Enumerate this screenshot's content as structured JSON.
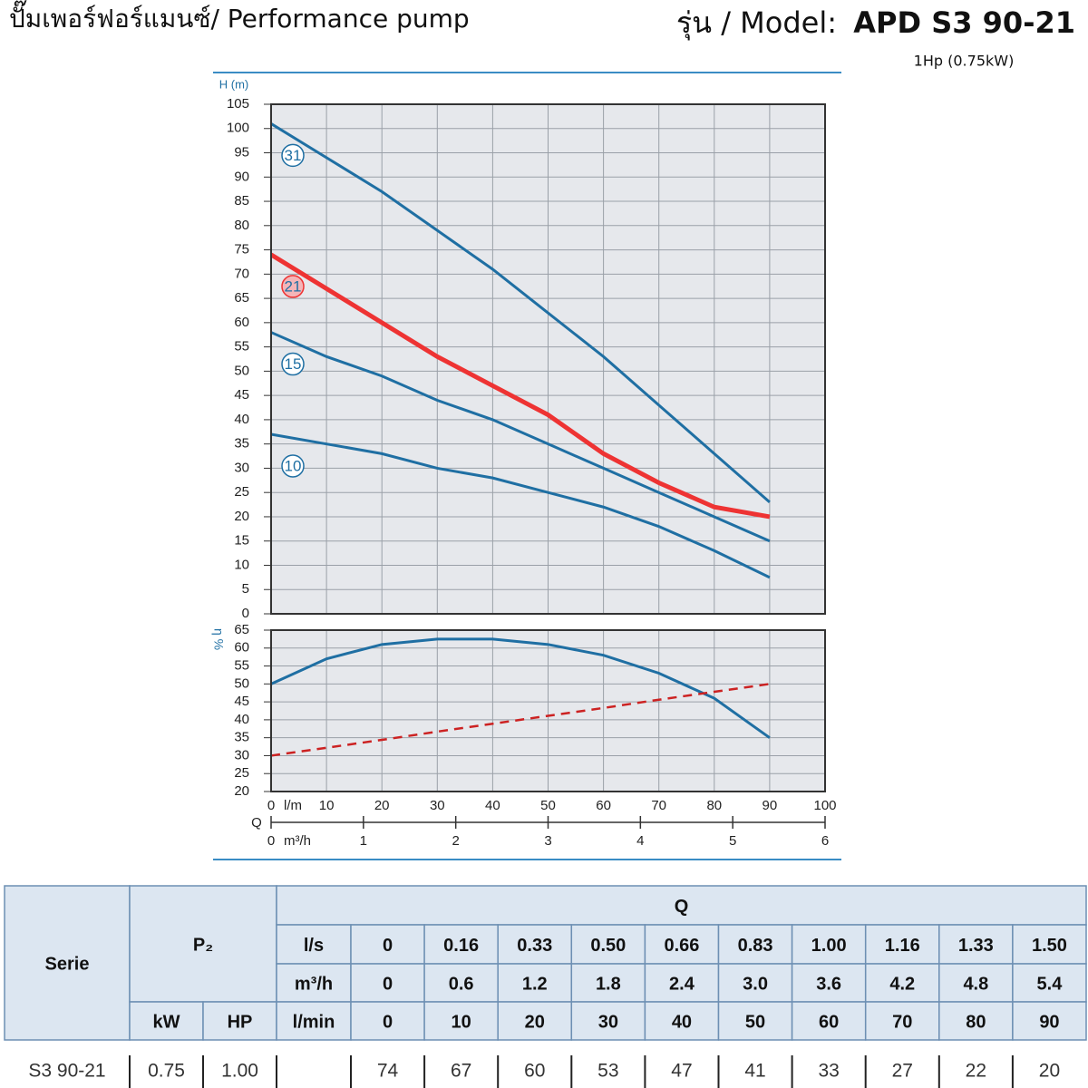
{
  "header": {
    "title": "ปั๊มเพอร์ฟอร์แมนซ์/ Performance pump",
    "model_prefix": "รุ่น / Model:",
    "model": "APD S3 90-21",
    "power": "1Hp (0.75kW)"
  },
  "chart_data": [
    {
      "type": "line",
      "y_label": "H (m)",
      "x": [
        0,
        10,
        20,
        30,
        40,
        50,
        60,
        70,
        80,
        90
      ],
      "xlim": [
        0,
        100
      ],
      "xticks": [
        0,
        10,
        20,
        30,
        40,
        50,
        60,
        70,
        80,
        90,
        100
      ],
      "ylim": [
        0,
        105
      ],
      "yticks": [
        0,
        5,
        10,
        15,
        20,
        25,
        30,
        35,
        40,
        45,
        50,
        55,
        60,
        65,
        70,
        75,
        80,
        85,
        90,
        95,
        100,
        105
      ],
      "grid": true,
      "series": [
        {
          "name": "31",
          "color": "#1f6fa3",
          "values": [
            101,
            94,
            87,
            79,
            71,
            62,
            53,
            43,
            33,
            23
          ]
        },
        {
          "name": "21",
          "color": "#ee3333",
          "highlight": true,
          "values": [
            74,
            67,
            60,
            53,
            47,
            41,
            33,
            27,
            22,
            20
          ]
        },
        {
          "name": "15",
          "color": "#1f6fa3",
          "values": [
            58,
            53,
            49,
            44,
            40,
            35,
            30,
            25,
            20,
            15
          ]
        },
        {
          "name": "10",
          "color": "#1f6fa3",
          "values": [
            37,
            35,
            33,
            30,
            28,
            25,
            22,
            18,
            13,
            7.5
          ]
        }
      ]
    },
    {
      "type": "line",
      "y_label": "η %",
      "x_label": "Q",
      "x_unit": "l/m",
      "x2_unit": "m³/h",
      "x": [
        0,
        10,
        20,
        30,
        40,
        50,
        60,
        70,
        80,
        90
      ],
      "xlim": [
        0,
        100
      ],
      "xticks": [
        0,
        10,
        20,
        30,
        40,
        50,
        60,
        70,
        80,
        90,
        100
      ],
      "x2lim": [
        0,
        6
      ],
      "x2ticks": [
        0,
        1,
        2,
        3,
        4,
        5,
        6
      ],
      "ylim": [
        20,
        65
      ],
      "yticks": [
        20,
        25,
        30,
        35,
        40,
        45,
        50,
        55,
        60,
        65
      ],
      "grid": true,
      "series": [
        {
          "color": "#1f6fa3",
          "values": [
            50,
            57,
            61,
            62.5,
            62.5,
            61,
            58,
            53,
            46,
            35
          ]
        },
        {
          "color": "#cc2222",
          "dashed": true,
          "values": [
            30,
            32.2,
            34.4,
            36.7,
            38.9,
            41.1,
            43.3,
            45.6,
            47.8,
            50
          ]
        }
      ]
    }
  ],
  "table": {
    "serie_header": "Serie",
    "p2_header": "P₂",
    "q_header": "Q",
    "kw_header": "kW",
    "hp_header": "HP",
    "flow_rows": [
      {
        "unit": "l/s",
        "values": [
          "0",
          "0.16",
          "0.33",
          "0.50",
          "0.66",
          "0.83",
          "1.00",
          "1.16",
          "1.33",
          "1.50"
        ]
      },
      {
        "unit": "m³/h",
        "values": [
          "0",
          "0.6",
          "1.2",
          "1.8",
          "2.4",
          "3.0",
          "3.6",
          "4.2",
          "4.8",
          "5.4"
        ]
      },
      {
        "unit": "l/min",
        "values": [
          "0",
          "10",
          "20",
          "30",
          "40",
          "50",
          "60",
          "70",
          "80",
          "90"
        ]
      }
    ],
    "rows": [
      {
        "serie": "S3 90-21",
        "kw": "0.75",
        "hp": "1.00",
        "heads": [
          74,
          67,
          60,
          53,
          47,
          41,
          33,
          27,
          22,
          20
        ]
      }
    ]
  }
}
